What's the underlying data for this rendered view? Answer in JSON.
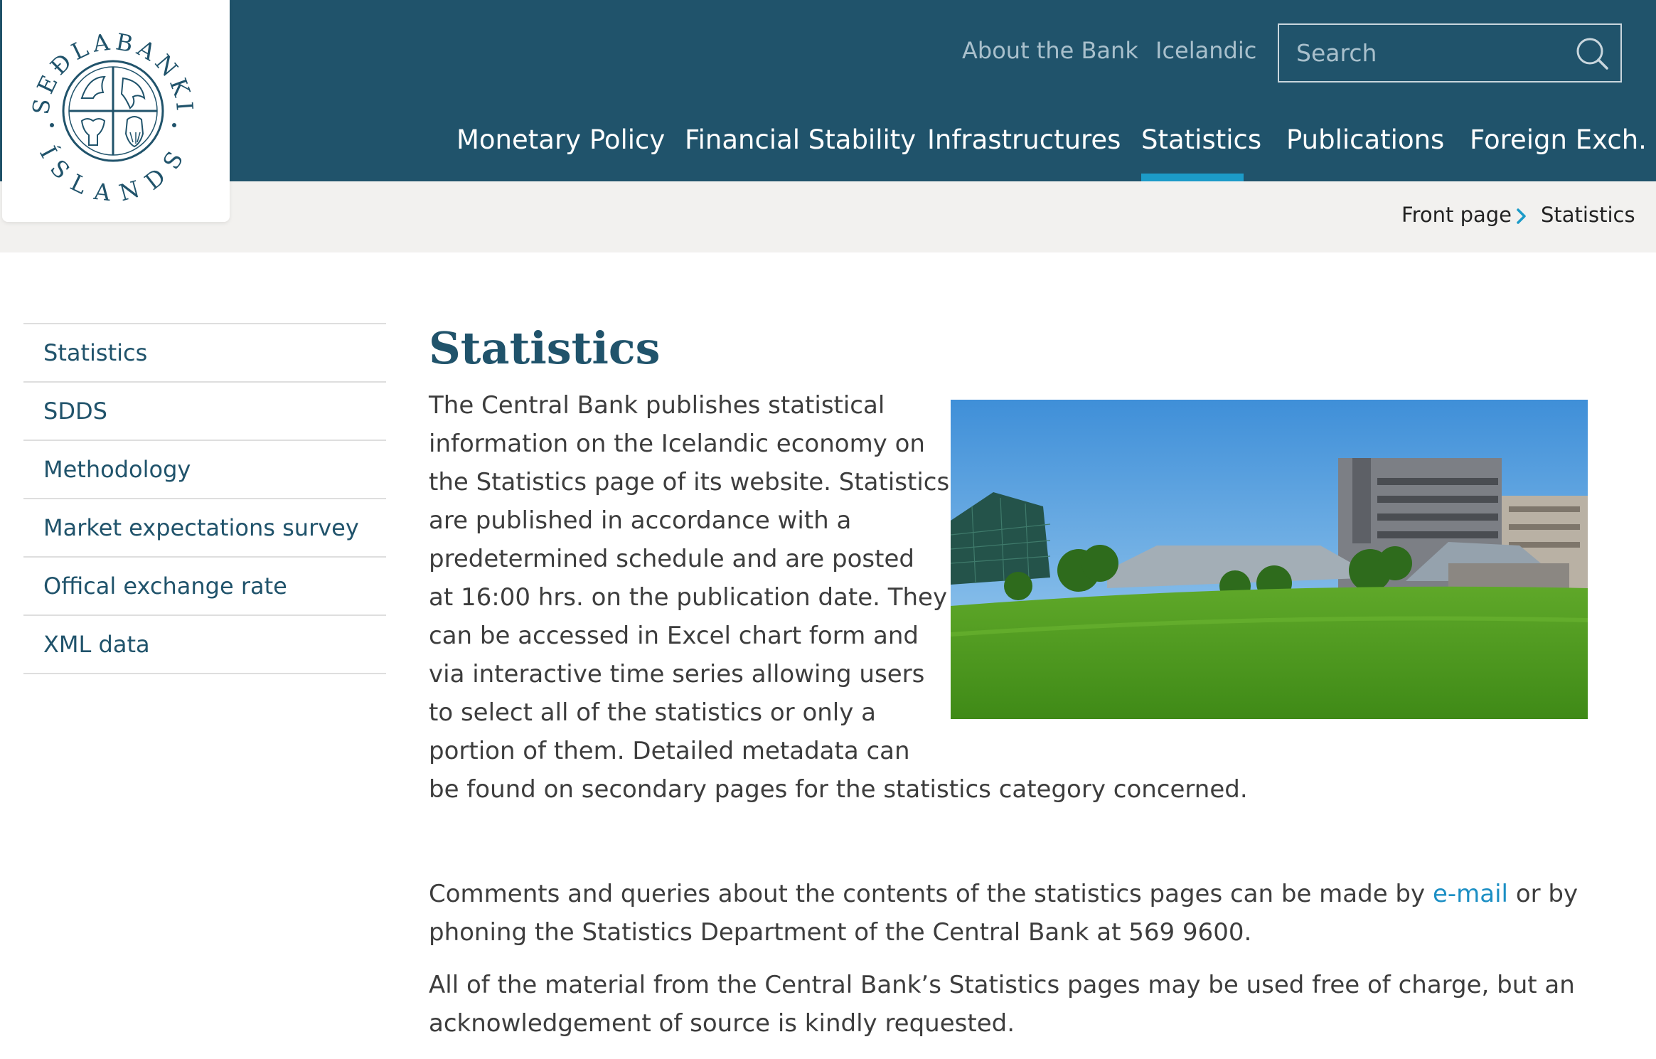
{
  "logo": {
    "text_top": "SEÐLABANKI",
    "text_bottom": "ÍSLANDS"
  },
  "header": {
    "utility_links": [
      "About the Bank",
      "Icelandic"
    ],
    "search_placeholder": "Search",
    "main_nav": [
      "Monetary Policy",
      "Financial Stability",
      "Infrastructures",
      "Statistics",
      "Publications",
      "Foreign Exch."
    ],
    "active_nav": "Statistics"
  },
  "breadcrumb": {
    "items": [
      "Front page",
      "Statistics"
    ]
  },
  "sidebar": {
    "items": [
      "Statistics",
      "SDDS",
      "Methodology",
      "Market expectations survey",
      "Offical exchange rate",
      "XML data"
    ]
  },
  "content": {
    "title": "Statistics",
    "intro_lines": [
      "The Central Bank publishes statistical",
      "information on the Icelandic economy on",
      "the Statistics page of its website. Statistics",
      "are published in accordance with a",
      "predetermined schedule and are posted",
      "at 16:00 hrs. on the publication date. They",
      "can be accessed in Excel chart form and",
      "via interactive time series allowing users",
      "to select all of the statistics or only a",
      "portion of them. Detailed metadata can",
      "be found on secondary pages for the statistics category concerned."
    ],
    "comments_before_link": "Comments and queries about the contents of the statistics pages can be made by",
    "comments_link": "e-mail",
    "comments_after_link": "or by",
    "comments_line2": "phoning the Statistics Department of the Central Bank at 569 9600.",
    "material_line1": "All of the material from the Central Bank’s Statistics pages may be used free of charge, but an",
    "material_line2": "acknowledgement of source is kindly requested."
  },
  "colors": {
    "header_bg": "#20536b",
    "accent": "#1c9bc8",
    "breadcrumb_bg": "#f2f1ef",
    "link": "#1c8fc4"
  },
  "icons": [
    "bank-seal-logo",
    "search-icon",
    "chevron-right-icon"
  ]
}
